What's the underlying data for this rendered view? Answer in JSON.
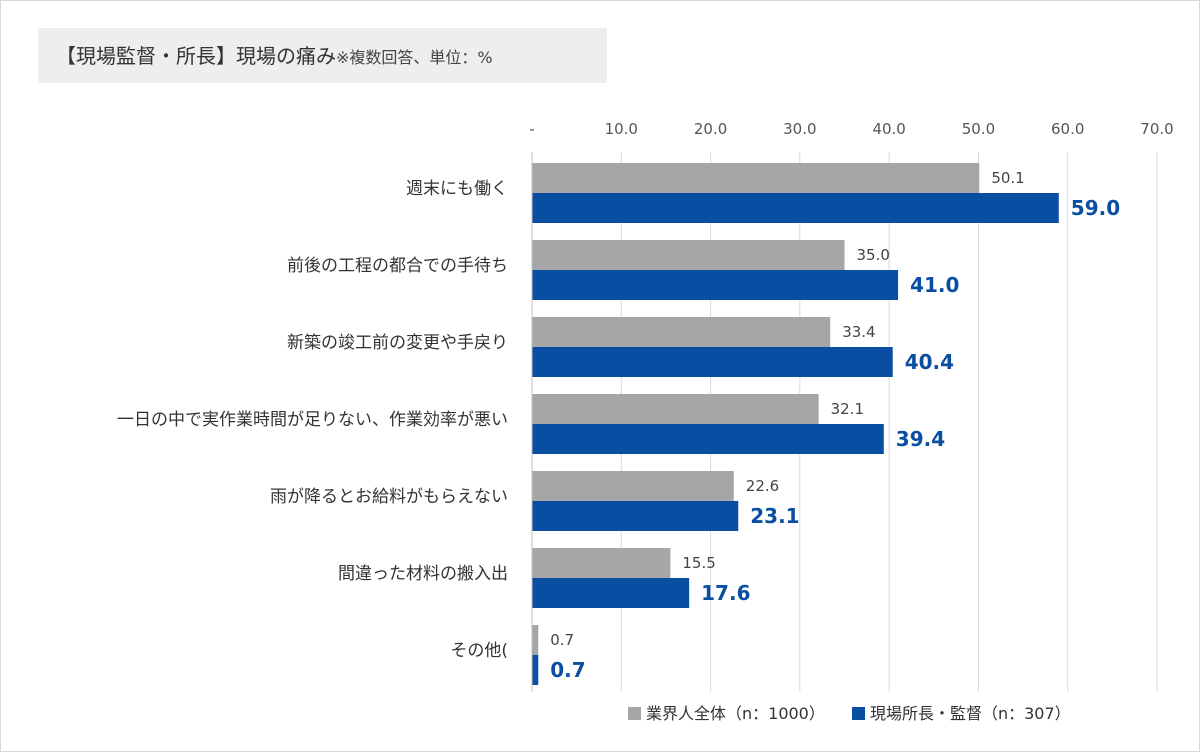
{
  "title": {
    "main": "【現場監督・所長】現場の痛み",
    "note": "※複数回答、単位：%"
  },
  "chart_data": {
    "type": "bar",
    "orientation": "horizontal",
    "categories": [
      "週末にも働く",
      "前後の工程の都合での手待ち",
      "新築の竣工前の変更や手戻り",
      "一日の中で実作業時間が足りない、作業効率が悪い",
      "雨が降るとお給料がもらえない",
      "間違った材料の搬入出",
      "その他("
    ],
    "series": [
      {
        "name": "業界人全体（n：1000）",
        "values": [
          50.1,
          35.0,
          33.4,
          32.1,
          22.6,
          15.5,
          0.7
        ],
        "color": "#a6a6a6"
      },
      {
        "name": "現場所長・監督（n：307）",
        "values": [
          59.0,
          41.0,
          40.4,
          39.4,
          23.1,
          17.6,
          0.7
        ],
        "color": "#0a4ea3"
      }
    ],
    "xlim": [
      0,
      70
    ],
    "ticks": [
      "-",
      "10.0",
      "20.0",
      "30.0",
      "40.0",
      "50.0",
      "60.0",
      "70.0"
    ],
    "grid": true,
    "legend_position": "bottom-right"
  }
}
